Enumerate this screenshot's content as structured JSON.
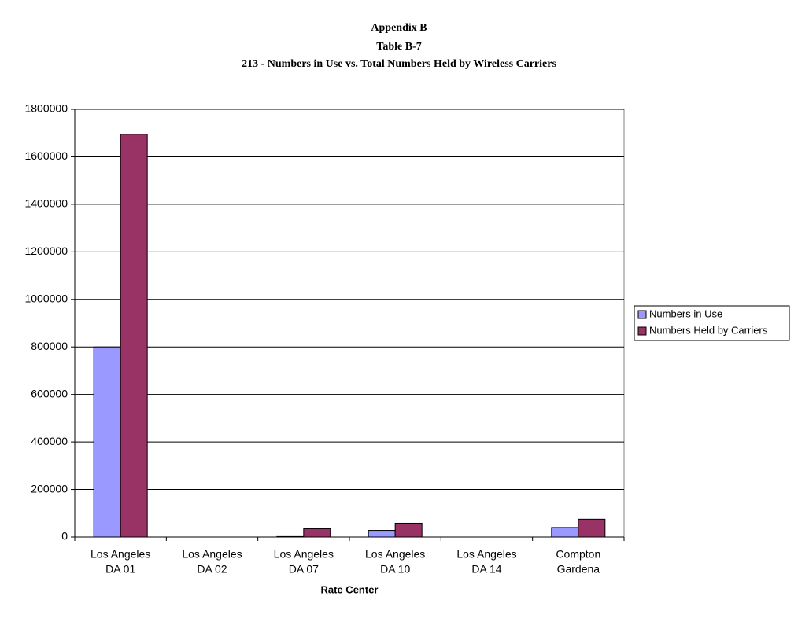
{
  "chart_data": {
    "type": "bar",
    "title": "Appendix B",
    "subtitle": "Table B-7",
    "subtitle2": "213 - Numbers in Use vs. Total Numbers Held by Wireless Carriers",
    "x_label": "Rate Center",
    "categories": [
      [
        "Los Angeles",
        "DA 01"
      ],
      [
        "Los Angeles",
        "DA 02"
      ],
      [
        "Los Angeles",
        "DA 07"
      ],
      [
        "Los Angeles",
        "DA 10"
      ],
      [
        "Los Angeles",
        "DA 14"
      ],
      [
        "Compton",
        "Gardena"
      ]
    ],
    "series": [
      {
        "name": "Numbers in Use",
        "color": "#9999ff",
        "values": [
          800000,
          0,
          2000,
          28000,
          0,
          40000
        ]
      },
      {
        "name": "Numbers Held by Carriers",
        "color": "#993366",
        "values": [
          1695000,
          0,
          35000,
          58000,
          0,
          75000
        ]
      }
    ],
    "ylim": [
      0,
      1800000
    ],
    "yticks": [
      0,
      200000,
      400000,
      600000,
      800000,
      1000000,
      1200000,
      1400000,
      1600000,
      1800000
    ],
    "grid": true,
    "legend": "right"
  }
}
